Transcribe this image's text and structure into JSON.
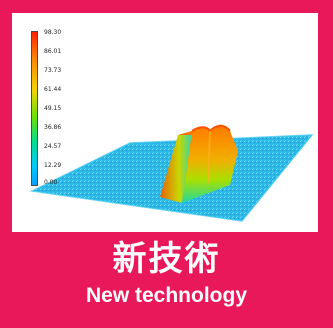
{
  "card": {
    "accent_color": "#e8185a"
  },
  "figure": {
    "colorbar_ticks": [
      "98.30",
      "86.01",
      "73.73",
      "61.44",
      "49.15",
      "36.86",
      "24.57",
      "12.29",
      "0.00"
    ],
    "image_description_icon": "3d-surface-plot-icon"
  },
  "caption": {
    "title_ja": "新技術",
    "title_en": "New technology"
  }
}
